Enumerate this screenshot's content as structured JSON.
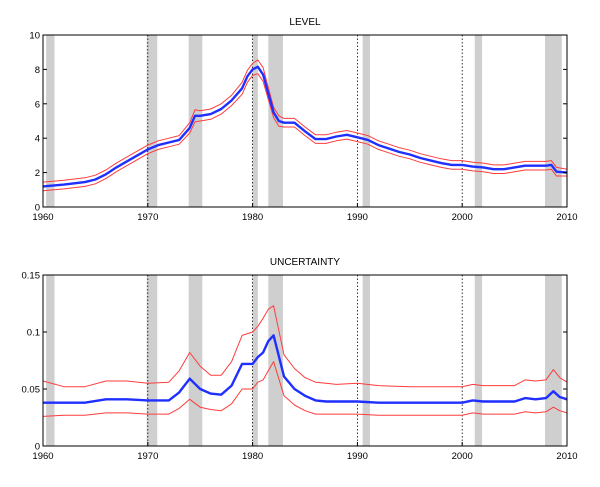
{
  "colors": {
    "main_series": "#1f2fff",
    "bands": "#ff3b3b",
    "recession": "#cfcfcf"
  },
  "chart_data": [
    {
      "type": "line",
      "title": "LEVEL",
      "xlim": [
        1960,
        2010
      ],
      "ylim": [
        0,
        10
      ],
      "x_ticks": [
        "1960",
        "1970",
        "1980",
        "1990",
        "2000",
        "2010"
      ],
      "y_ticks": [
        "0",
        "2",
        "4",
        "6",
        "8",
        "10"
      ],
      "grid": "vertical dotted at decades",
      "recessions": [
        [
          1960.3,
          1961.1
        ],
        [
          1969.9,
          1970.9
        ],
        [
          1973.9,
          1975.2
        ],
        [
          1980.0,
          1980.5
        ],
        [
          1981.5,
          1982.9
        ],
        [
          1990.5,
          1991.2
        ],
        [
          2001.2,
          2001.9
        ],
        [
          2007.9,
          2009.5
        ]
      ],
      "series": [
        {
          "role": "estimate",
          "x": [
            1960,
            1962,
            1964,
            1965,
            1966,
            1967,
            1968,
            1969,
            1970,
            1971,
            1972,
            1973,
            1974,
            1974.5,
            1975,
            1976,
            1977,
            1978,
            1979,
            1979.5,
            1980,
            1980.5,
            1981,
            1981.5,
            1982,
            1982.5,
            1983,
            1984,
            1985,
            1986,
            1987,
            1988,
            1989,
            1990,
            1991,
            1992,
            1993,
            1994,
            1995,
            1996,
            1997,
            1998,
            1999,
            2000,
            2001,
            2002,
            2003,
            2004,
            2005,
            2006,
            2007,
            2008,
            2008.5,
            2009,
            2010
          ],
          "values": [
            1.2,
            1.3,
            1.45,
            1.6,
            1.9,
            2.3,
            2.65,
            3.0,
            3.35,
            3.6,
            3.75,
            3.9,
            4.6,
            5.3,
            5.3,
            5.4,
            5.7,
            6.2,
            6.9,
            7.6,
            8.0,
            8.15,
            7.7,
            6.6,
            5.5,
            5.0,
            4.9,
            4.9,
            4.4,
            3.95,
            3.95,
            4.1,
            4.2,
            4.05,
            3.9,
            3.6,
            3.4,
            3.2,
            3.05,
            2.85,
            2.7,
            2.55,
            2.45,
            2.45,
            2.35,
            2.3,
            2.2,
            2.2,
            2.3,
            2.4,
            2.4,
            2.4,
            2.45,
            2.05,
            2.0
          ]
        },
        {
          "role": "upper-band",
          "x": [
            1960,
            1962,
            1964,
            1965,
            1966,
            1967,
            1968,
            1969,
            1970,
            1971,
            1972,
            1973,
            1974,
            1974.5,
            1975,
            1976,
            1977,
            1978,
            1979,
            1979.5,
            1980,
            1980.5,
            1981,
            1981.5,
            1982,
            1982.5,
            1983,
            1984,
            1985,
            1986,
            1987,
            1988,
            1989,
            1990,
            1991,
            1992,
            1993,
            1994,
            1995,
            1996,
            1997,
            1998,
            1999,
            2000,
            2001,
            2002,
            2003,
            2004,
            2005,
            2006,
            2007,
            2008,
            2008.5,
            2009,
            2010
          ],
          "values": [
            1.45,
            1.55,
            1.7,
            1.85,
            2.15,
            2.55,
            2.9,
            3.25,
            3.6,
            3.85,
            4.0,
            4.15,
            4.9,
            5.65,
            5.6,
            5.7,
            6.0,
            6.5,
            7.25,
            7.95,
            8.35,
            8.55,
            8.1,
            6.95,
            5.8,
            5.3,
            5.15,
            5.15,
            4.65,
            4.2,
            4.2,
            4.35,
            4.45,
            4.3,
            4.15,
            3.85,
            3.65,
            3.45,
            3.3,
            3.1,
            2.95,
            2.8,
            2.7,
            2.7,
            2.6,
            2.55,
            2.45,
            2.45,
            2.55,
            2.65,
            2.65,
            2.65,
            2.7,
            2.3,
            2.2
          ]
        },
        {
          "role": "lower-band",
          "x": [
            1960,
            1962,
            1964,
            1965,
            1966,
            1967,
            1968,
            1969,
            1970,
            1971,
            1972,
            1973,
            1974,
            1974.5,
            1975,
            1976,
            1977,
            1978,
            1979,
            1979.5,
            1980,
            1980.5,
            1981,
            1981.5,
            1982,
            1982.5,
            1983,
            1984,
            1985,
            1986,
            1987,
            1988,
            1989,
            1990,
            1991,
            1992,
            1993,
            1994,
            1995,
            1996,
            1997,
            1998,
            1999,
            2000,
            2001,
            2002,
            2003,
            2004,
            2005,
            2006,
            2007,
            2008,
            2008.5,
            2009,
            2010
          ],
          "values": [
            0.95,
            1.05,
            1.2,
            1.35,
            1.65,
            2.05,
            2.4,
            2.75,
            3.1,
            3.35,
            3.5,
            3.65,
            4.3,
            4.95,
            5.0,
            5.1,
            5.4,
            5.9,
            6.55,
            7.25,
            7.65,
            7.75,
            7.3,
            6.25,
            5.2,
            4.7,
            4.65,
            4.65,
            4.15,
            3.7,
            3.7,
            3.85,
            3.95,
            3.8,
            3.65,
            3.35,
            3.15,
            2.95,
            2.8,
            2.6,
            2.45,
            2.3,
            2.2,
            2.2,
            2.1,
            2.05,
            1.95,
            1.95,
            2.05,
            2.15,
            2.15,
            2.15,
            2.2,
            1.8,
            1.8
          ]
        }
      ]
    },
    {
      "type": "line",
      "title": "UNCERTAINTY",
      "xlim": [
        1960,
        2010
      ],
      "ylim": [
        0,
        0.15
      ],
      "x_ticks": [
        "1960",
        "1970",
        "1980",
        "1990",
        "2000",
        "2010"
      ],
      "y_ticks": [
        "0",
        "0.05",
        "0.1",
        "0.15"
      ],
      "grid": "vertical dotted at decades",
      "recessions": [
        [
          1960.3,
          1961.1
        ],
        [
          1969.9,
          1970.9
        ],
        [
          1973.9,
          1975.2
        ],
        [
          1980.0,
          1980.5
        ],
        [
          1981.5,
          1982.9
        ],
        [
          1990.5,
          1991.2
        ],
        [
          2001.2,
          2001.9
        ],
        [
          2007.9,
          2009.5
        ]
      ],
      "series": [
        {
          "role": "estimate",
          "x": [
            1960,
            1962,
            1964,
            1966,
            1968,
            1970,
            1972,
            1973,
            1974,
            1975,
            1976,
            1977,
            1978,
            1979,
            1980,
            1980.5,
            1981,
            1981.5,
            1982,
            1983,
            1984,
            1985,
            1986,
            1987,
            1988,
            1990,
            1992,
            1995,
            2000,
            2001,
            2002,
            2005,
            2006,
            2007,
            2008,
            2008.7,
            2009.3,
            2010
          ],
          "values": [
            0.038,
            0.038,
            0.038,
            0.041,
            0.041,
            0.04,
            0.04,
            0.047,
            0.059,
            0.05,
            0.046,
            0.045,
            0.053,
            0.072,
            0.072,
            0.078,
            0.082,
            0.092,
            0.097,
            0.061,
            0.05,
            0.044,
            0.04,
            0.039,
            0.039,
            0.039,
            0.038,
            0.038,
            0.038,
            0.04,
            0.039,
            0.039,
            0.042,
            0.041,
            0.042,
            0.048,
            0.043,
            0.041
          ]
        },
        {
          "role": "upper-band",
          "x": [
            1960,
            1962,
            1964,
            1966,
            1968,
            1970,
            1972,
            1973,
            1974,
            1975,
            1976,
            1977,
            1978,
            1979,
            1980,
            1980.5,
            1981,
            1981.5,
            1982,
            1983,
            1984,
            1985,
            1986,
            1987,
            1988,
            1990,
            1992,
            1995,
            2000,
            2001,
            2002,
            2005,
            2006,
            2007,
            2008,
            2008.7,
            2009.3,
            2010
          ],
          "values": [
            0.057,
            0.052,
            0.052,
            0.057,
            0.057,
            0.055,
            0.056,
            0.066,
            0.082,
            0.07,
            0.062,
            0.062,
            0.074,
            0.097,
            0.1,
            0.105,
            0.112,
            0.12,
            0.123,
            0.08,
            0.068,
            0.06,
            0.056,
            0.055,
            0.054,
            0.055,
            0.053,
            0.052,
            0.052,
            0.054,
            0.053,
            0.053,
            0.058,
            0.057,
            0.058,
            0.067,
            0.06,
            0.056
          ]
        },
        {
          "role": "lower-band",
          "x": [
            1960,
            1962,
            1964,
            1966,
            1968,
            1970,
            1972,
            1973,
            1974,
            1975,
            1976,
            1977,
            1978,
            1979,
            1980,
            1980.5,
            1981,
            1981.5,
            1982,
            1983,
            1984,
            1985,
            1986,
            1987,
            1988,
            1990,
            1992,
            1995,
            2000,
            2001,
            2002,
            2005,
            2006,
            2007,
            2008,
            2008.7,
            2009.3,
            2010
          ],
          "values": [
            0.026,
            0.027,
            0.027,
            0.029,
            0.029,
            0.028,
            0.028,
            0.033,
            0.041,
            0.034,
            0.032,
            0.031,
            0.037,
            0.05,
            0.05,
            0.056,
            0.058,
            0.066,
            0.074,
            0.044,
            0.036,
            0.031,
            0.028,
            0.028,
            0.028,
            0.028,
            0.027,
            0.027,
            0.027,
            0.029,
            0.028,
            0.028,
            0.03,
            0.029,
            0.03,
            0.034,
            0.031,
            0.029
          ]
        }
      ]
    }
  ]
}
